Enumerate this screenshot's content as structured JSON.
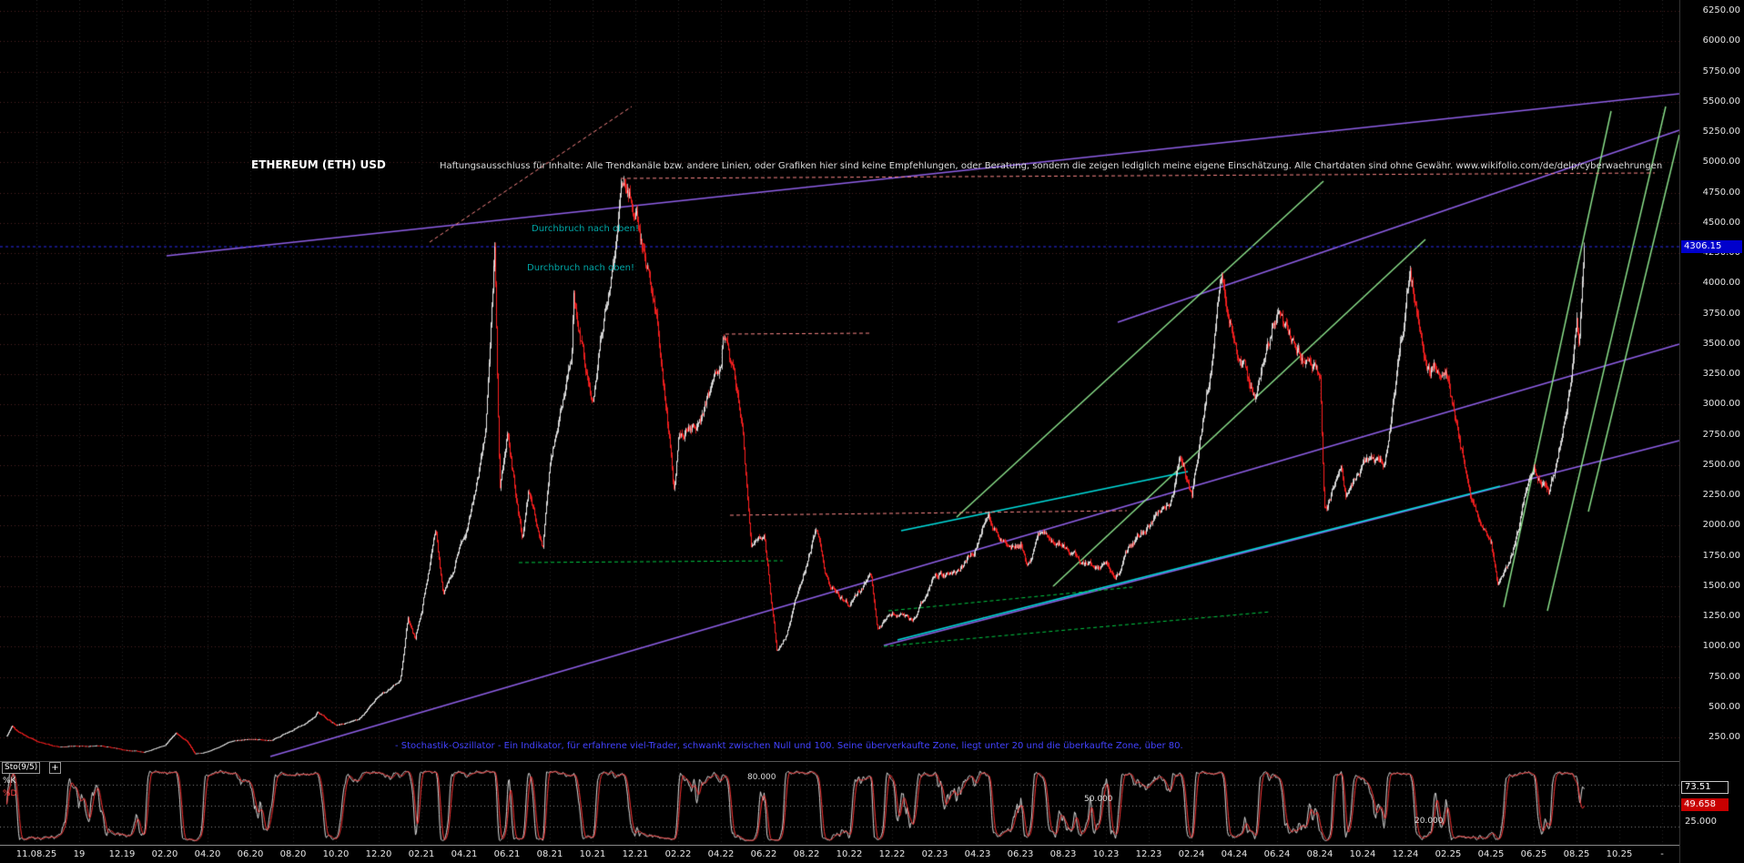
{
  "app": {
    "background": "#000000",
    "colors": {
      "candle_up": "#e8e8e8",
      "candle_down": "#ff2020",
      "stoch_k_line": "#dddddd",
      "stoch_d_line": "#ff3333",
      "price_badge_bg": "#0000cc",
      "d_badge_bg": "#c80000",
      "grid_horizontal": "#4f2323",
      "grid_vertical": "#242424",
      "axis_text": "#e6e6e6",
      "breakout_text": "#00a5a5",
      "note_text": "#4242ff"
    }
  },
  "header": {
    "title": "ETHEREUM (ETH) USD",
    "disclaimer": "Haftungsausschluss für Inhalte: Alle Trendkanäle bzw. andere Linien, oder Grafiken hier sind keine Empfehlungen, oder Beratung, sondern die zeigen lediglich meine eigene Einschätzung. Alle Chartdaten sind ohne Gewähr.  www.wikifolio.com/de/delp/cyberwaehrungen"
  },
  "annotations": {
    "breakout_upper": "Durchbruch nach oben!",
    "breakout_lower": "Durchbruch nach oben!",
    "stochastic_note": "- Stochastik-Oszillator - Ein Indikator, für erfahrene viel-Trader, schwankt zwischen Null und 100. Seine überverkaufte Zone, liegt unter 20 und die überkaufte Zone, über 80."
  },
  "price_axis": {
    "tick_labels": [
      "6250.00",
      "6000.00",
      "5750.00",
      "5500.00",
      "5250.00",
      "5000.00",
      "4750.00",
      "4500.00",
      "4250.00",
      "4000.00",
      "3750.00",
      "3500.00",
      "3250.00",
      "3000.00",
      "2750.00",
      "2500.00",
      "2250.00",
      "2000.00",
      "1750.00",
      "1500.00",
      "1250.00",
      "1000.00",
      "750.00",
      "500.00",
      "250.00"
    ],
    "last_price": "4306.15"
  },
  "date_axis": {
    "tick_labels": [
      "11.08.25",
      "19",
      "12.19",
      "02.20",
      "04.20",
      "06.20",
      "08.20",
      "10.20",
      "12.20",
      "02.21",
      "04.21",
      "06.21",
      "08.21",
      "10.21",
      "12.21",
      "02.22",
      "04.22",
      "06.22",
      "08.22",
      "10.22",
      "12.22",
      "02.23",
      "04.23",
      "06.23",
      "08.23",
      "10.23",
      "12.23",
      "02.24",
      "04.24",
      "06.24",
      "08.24",
      "10.24",
      "12.24",
      "02.25",
      "04.25",
      "06.25",
      "08.25",
      "10.25",
      "-"
    ]
  },
  "oscillator": {
    "name": "Sto(9/5)",
    "plus_icon": "+",
    "k_label": "%K",
    "d_label": "%D",
    "k_value": "73.51",
    "d_value": "49.658",
    "level_80": "80.000",
    "level_50": "50.000",
    "level_20": "20.000",
    "level_25": "25.000"
  },
  "chart_data": {
    "type": "candlestick",
    "title": "ETHEREUM (ETH) USD",
    "y_axis": {
      "min": 0,
      "max": 6300,
      "tick_step": 250,
      "unit": "USD"
    },
    "x_axis": {
      "start": "06.2019",
      "end": "10.2025",
      "tick_labels": [
        "11.08.25",
        "19",
        "12.19",
        "02.20",
        "04.20",
        "06.20",
        "08.20",
        "10.20",
        "12.20",
        "02.21",
        "04.21",
        "06.21",
        "08.21",
        "10.21",
        "12.21",
        "02.22",
        "04.22",
        "06.22",
        "08.22",
        "10.22",
        "12.22",
        "02.23",
        "04.23",
        "06.23",
        "08.23",
        "10.23",
        "12.23",
        "02.24",
        "04.24",
        "06.24",
        "08.24",
        "10.24",
        "12.24",
        "02.25",
        "04.25",
        "06.25",
        "08.25",
        "10.25",
        "-"
      ]
    },
    "last_price": 4306.15,
    "monthly_anchor_closes": {
      "month0": "2019-07",
      "points": [
        [
          -1.4,
          265
        ],
        [
          -1.15,
          350
        ],
        [
          -1,
          318
        ],
        [
          0,
          218
        ],
        [
          1,
          172
        ],
        [
          2,
          180
        ],
        [
          3,
          182
        ],
        [
          4,
          152
        ],
        [
          5,
          130
        ],
        [
          6,
          180
        ],
        [
          6.5,
          280
        ],
        [
          7,
          224
        ],
        [
          7.4,
          115
        ],
        [
          8,
          133
        ],
        [
          9,
          206
        ],
        [
          10,
          232
        ],
        [
          11,
          226
        ],
        [
          12,
          318
        ],
        [
          13,
          435
        ],
        [
          13.1,
          478
        ],
        [
          14,
          360
        ],
        [
          15,
          387
        ],
        [
          16,
          575
        ],
        [
          17,
          737
        ],
        [
          17.35,
          1250
        ],
        [
          17.7,
          1060
        ],
        [
          18,
          1315
        ],
        [
          18.65,
          2020
        ],
        [
          19,
          1420
        ],
        [
          20,
          1920
        ],
        [
          21,
          2770
        ],
        [
          21.4,
          4340
        ],
        [
          21.65,
          2300
        ],
        [
          22,
          2700
        ],
        [
          22.7,
          1880
        ],
        [
          23,
          2270
        ],
        [
          23.65,
          1810
        ],
        [
          24,
          2530
        ],
        [
          25,
          3430
        ],
        [
          25.1,
          3980
        ],
        [
          26,
          3000
        ],
        [
          27,
          4290
        ],
        [
          27.35,
          4840
        ],
        [
          28,
          4630
        ],
        [
          29,
          3680
        ],
        [
          29.8,
          2280
        ],
        [
          30,
          2690
        ],
        [
          31,
          2920
        ],
        [
          32,
          3280
        ],
        [
          32.1,
          3520
        ],
        [
          33,
          2820
        ],
        [
          33.4,
          1900
        ],
        [
          34,
          1940
        ],
        [
          34.6,
          960
        ],
        [
          35,
          1070
        ],
        [
          36,
          1680
        ],
        [
          36.45,
          1980
        ],
        [
          37,
          1550
        ],
        [
          38,
          1330
        ],
        [
          39,
          1570
        ],
        [
          39.3,
          1120
        ],
        [
          40,
          1290
        ],
        [
          41,
          1195
        ],
        [
          42,
          1590
        ],
        [
          43,
          1600
        ],
        [
          44,
          1820
        ],
        [
          44.5,
          2120
        ],
        [
          45,
          1870
        ],
        [
          46,
          1870
        ],
        [
          46.3,
          1650
        ],
        [
          47,
          1930
        ],
        [
          48,
          1860
        ],
        [
          49,
          1650
        ],
        [
          50,
          1670
        ],
        [
          50.4,
          1560
        ],
        [
          51,
          1800
        ],
        [
          52,
          2050
        ],
        [
          53,
          2280
        ],
        [
          53.4,
          2580
        ],
        [
          54,
          2280
        ],
        [
          55,
          3380
        ],
        [
          55.4,
          4070
        ],
        [
          56,
          3650
        ],
        [
          57,
          3010
        ],
        [
          58,
          3760
        ],
        [
          59,
          3440
        ],
        [
          60,
          3230
        ],
        [
          60.2,
          2160
        ],
        [
          61,
          2510
        ],
        [
          61.2,
          2280
        ],
        [
          62,
          2600
        ],
        [
          63,
          2510
        ],
        [
          64,
          3700
        ],
        [
          64.2,
          4050
        ],
        [
          65,
          3340
        ],
        [
          66,
          3300
        ],
        [
          67,
          2240
        ],
        [
          68,
          1820
        ],
        [
          68.3,
          1470
        ],
        [
          69,
          1790
        ],
        [
          70,
          2530
        ],
        [
          70.7,
          2250
        ],
        [
          71,
          2490
        ],
        [
          71.6,
          3100
        ],
        [
          72,
          3690
        ],
        [
          72.1,
          3440
        ],
        [
          72.35,
          4306
        ]
      ]
    },
    "indicator": {
      "type": "stochastic",
      "label": "Sto(9/5)",
      "k_period": 9,
      "d_period": 5,
      "k": 73.51,
      "d": 49.658,
      "levels": [
        80,
        50,
        20
      ]
    },
    "trend_lines": [
      {
        "color": "#8f5fe8",
        "w": 1.4,
        "dash": [],
        "p": [
          183,
          281,
          1845,
          103
        ]
      },
      {
        "color": "#8f5fe8",
        "w": 1.4,
        "dash": [],
        "p": [
          1228,
          354,
          1845,
          143
        ]
      },
      {
        "color": "#8f5fe8",
        "w": 1.4,
        "dash": [],
        "p": [
          297,
          831,
          1845,
          378
        ]
      },
      {
        "color": "#8f5fe8",
        "w": 1.4,
        "dash": [],
        "p": [
          971,
          709,
          1845,
          484
        ]
      },
      {
        "color": "#8fe88f",
        "w": 1.4,
        "dash": [],
        "p": [
          1652,
          667,
          1770,
          122
        ]
      },
      {
        "color": "#8fe88f",
        "w": 1.4,
        "dash": [],
        "p": [
          1700,
          671,
          1830,
          117
        ]
      },
      {
        "color": "#8fe88f",
        "w": 1.4,
        "dash": [],
        "p": [
          1745,
          562,
          1845,
          148
        ]
      },
      {
        "color": "#8fe88f",
        "w": 1.4,
        "dash": [],
        "p": [
          1051,
          568,
          1454,
          199
        ]
      },
      {
        "color": "#8fe88f",
        "w": 1.4,
        "dash": [],
        "p": [
          1157,
          644,
          1566,
          263
        ]
      },
      {
        "color": "#00dede",
        "w": 1.3,
        "dash": [],
        "p": [
          990,
          583,
          1305,
          518
        ]
      },
      {
        "color": "#00dede",
        "w": 1.3,
        "dash": [],
        "p": [
          986,
          703,
          1648,
          534
        ]
      },
      {
        "color": "#ff8888",
        "w": 1,
        "dash": [
          4,
          3
        ],
        "p": [
          472,
          266,
          694,
          117
        ]
      },
      {
        "color": "#ff8888",
        "w": 1,
        "dash": [
          4,
          3
        ],
        "p": [
          682,
          196,
          1818,
          190
        ]
      },
      {
        "color": "#ff8888",
        "w": 1,
        "dash": [
          4,
          3
        ],
        "p": [
          797,
          367,
          958,
          366
        ]
      },
      {
        "color": "#ff8888",
        "w": 1,
        "dash": [
          4,
          3
        ],
        "p": [
          802,
          566,
          1238,
          561
        ]
      },
      {
        "color": "#00cc44",
        "w": 1,
        "dash": [
          4,
          3
        ],
        "p": [
          570,
          618,
          860,
          616
        ]
      },
      {
        "color": "#00cc44",
        "w": 1,
        "dash": [
          4,
          3
        ],
        "p": [
          976,
          671,
          1244,
          645
        ]
      },
      {
        "color": "#00cc44",
        "w": 1,
        "dash": [
          4,
          3
        ],
        "p": [
          971,
          710,
          1396,
          672
        ]
      },
      {
        "color": "#2525c8",
        "w": 1.2,
        "dash": [
          3,
          3
        ],
        "p": [
          0,
          271,
          1845,
          271
        ]
      }
    ]
  }
}
